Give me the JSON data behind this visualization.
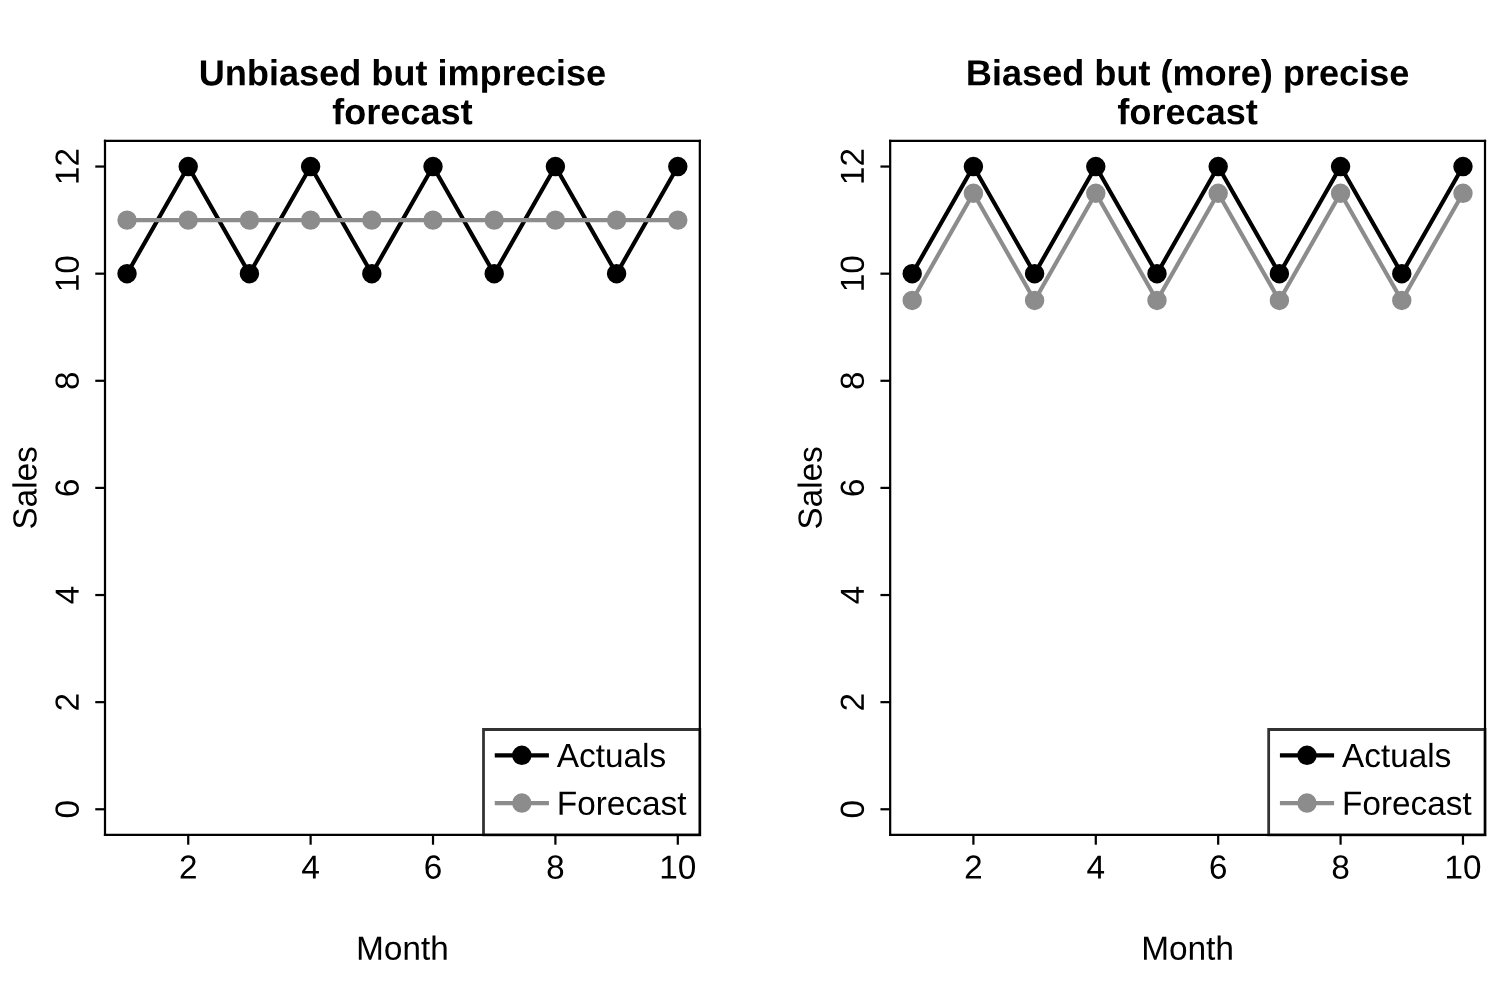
{
  "chart_data": [
    {
      "type": "line",
      "title": "Unbiased but imprecise\nforecast",
      "xlabel": "Month",
      "ylabel": "Sales",
      "x": [
        1,
        2,
        3,
        4,
        5,
        6,
        7,
        8,
        9,
        10
      ],
      "xlim": [
        0.64,
        10.36
      ],
      "ylim": [
        -0.48,
        12.48
      ],
      "xticks": [
        2,
        4,
        6,
        8,
        10
      ],
      "yticks": [
        0,
        2,
        4,
        6,
        8,
        10,
        12
      ],
      "marker": "circle",
      "line_style": "solid",
      "grid": false,
      "legend": "bottom right",
      "series": [
        {
          "name": "Actuals",
          "color": "#000000",
          "values": [
            10,
            12,
            10,
            12,
            10,
            12,
            10,
            12,
            10,
            12
          ]
        },
        {
          "name": "Forecast",
          "color": "#8c8c8c",
          "values": [
            11,
            11,
            11,
            11,
            11,
            11,
            11,
            11,
            11,
            11
          ]
        }
      ]
    },
    {
      "type": "line",
      "title": "Biased but (more) precise\nforecast",
      "xlabel": "Month",
      "ylabel": "Sales",
      "x": [
        1,
        2,
        3,
        4,
        5,
        6,
        7,
        8,
        9,
        10
      ],
      "xlim": [
        0.64,
        10.36
      ],
      "ylim": [
        -0.48,
        12.48
      ],
      "xticks": [
        2,
        4,
        6,
        8,
        10
      ],
      "yticks": [
        0,
        2,
        4,
        6,
        8,
        10,
        12
      ],
      "marker": "circle",
      "line_style": "solid",
      "grid": false,
      "legend": "bottom right",
      "series": [
        {
          "name": "Actuals",
          "color": "#000000",
          "values": [
            10,
            12,
            10,
            12,
            10,
            12,
            10,
            12,
            10,
            12
          ]
        },
        {
          "name": "Forecast",
          "color": "#8c8c8c",
          "values": [
            9.5,
            11.5,
            9.5,
            11.5,
            9.5,
            11.5,
            9.5,
            11.5,
            9.5,
            11.5
          ]
        }
      ]
    }
  ]
}
